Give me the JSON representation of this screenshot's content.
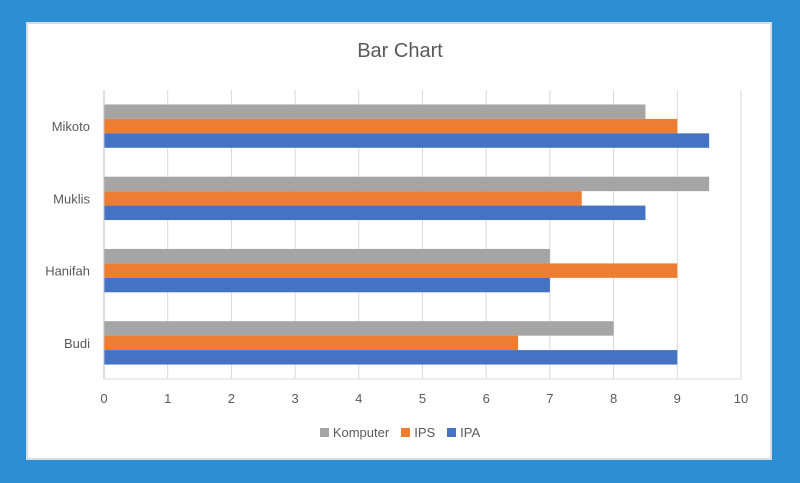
{
  "chart_data": {
    "type": "bar",
    "orientation": "horizontal",
    "title": "Bar Chart",
    "categories": [
      "Mikoto",
      "Muklis",
      "Hanifah",
      "Budi"
    ],
    "series": [
      {
        "name": "Komputer",
        "color": "#a5a5a5",
        "values": [
          8.5,
          9.5,
          7,
          8
        ]
      },
      {
        "name": "IPS",
        "color": "#ed7d31",
        "values": [
          9,
          7.5,
          9,
          6.5
        ]
      },
      {
        "name": "IPA",
        "color": "#4472c4",
        "values": [
          9.5,
          8.5,
          7,
          9
        ]
      }
    ],
    "xlim": [
      0,
      10
    ],
    "xticks": [
      0,
      1,
      2,
      3,
      4,
      5,
      6,
      7,
      8,
      9,
      10
    ],
    "grid": true,
    "legend_position": "bottom"
  }
}
